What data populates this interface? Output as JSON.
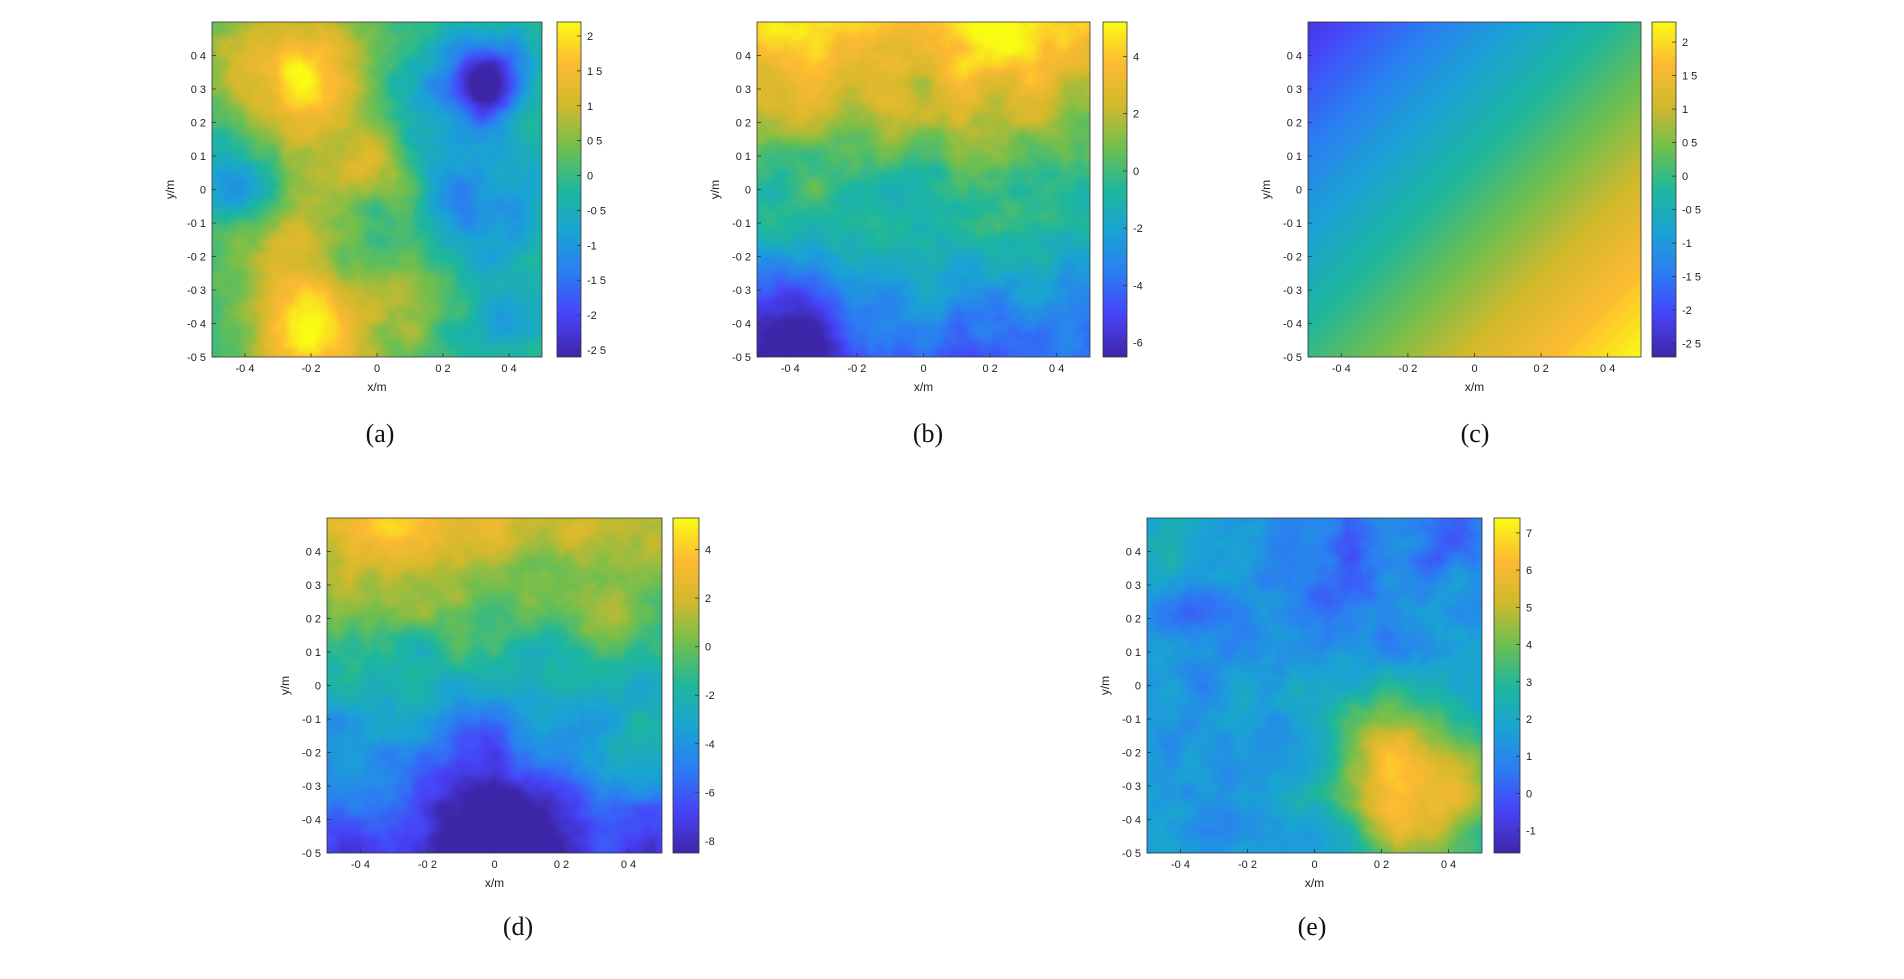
{
  "figure": {
    "colormap": [
      "#3e26a8",
      "#4743f8",
      "#2c7df3",
      "#1aa4d3",
      "#1eb79c",
      "#6fbf4f",
      "#d2b92c",
      "#fdba32",
      "#f9fb15"
    ]
  },
  "chart_data": [
    {
      "id": "a",
      "caption": "(a)",
      "type": "heatmap",
      "xlabel": "x/m",
      "ylabel": "y/m",
      "xlim": [
        -0.5,
        0.5
      ],
      "ylim": [
        -0.5,
        0.5
      ],
      "xticks": [
        -0.4,
        -0.2,
        0,
        0.2,
        0.4
      ],
      "xtick_labels": [
        "-0 4",
        "-0 2",
        "0",
        "0 2",
        "0 4"
      ],
      "yticks": [
        0.4,
        0.3,
        0.2,
        0.1,
        0,
        -0.1,
        -0.2,
        -0.3,
        -0.4,
        -0.5
      ],
      "ytick_labels": [
        "0 4",
        "0 3",
        "0 2",
        "0 1",
        "0",
        "-0 1",
        "-0 2",
        "-0 3",
        "-0 4",
        "-0 5"
      ],
      "clim": [
        -2.6,
        2.2
      ],
      "cticks": [
        2,
        1.5,
        1,
        0.5,
        0,
        -0.5,
        -1,
        -1.5,
        -2,
        -2.5
      ],
      "ctick_labels": [
        "2",
        "1 5",
        "1",
        "0 5",
        "0",
        "-0 5",
        "-1",
        "-1 5",
        "-2",
        "-2 5"
      ],
      "field": {
        "kind": "blobs",
        "base": 0.0,
        "blobs": [
          [
            -0.25,
            0.35,
            0.14,
            2.0
          ],
          [
            0.33,
            0.32,
            0.09,
            -2.7
          ],
          [
            -0.2,
            -0.4,
            0.13,
            2.1
          ],
          [
            -0.05,
            0.05,
            0.1,
            1.2
          ],
          [
            -0.3,
            -0.15,
            0.09,
            0.8
          ],
          [
            0.3,
            -0.05,
            0.14,
            -1.3
          ],
          [
            -0.42,
            0.0,
            0.08,
            -0.9
          ],
          [
            0.1,
            -0.28,
            0.11,
            0.4
          ],
          [
            0.42,
            -0.38,
            0.07,
            -1.0
          ],
          [
            -0.05,
            -0.05,
            0.06,
            -0.4
          ],
          [
            0.15,
            0.25,
            0.08,
            -0.6
          ]
        ]
      }
    },
    {
      "id": "b",
      "caption": "(b)",
      "type": "heatmap",
      "xlabel": "x/m",
      "ylabel": "y/m",
      "xlim": [
        -0.5,
        0.5
      ],
      "ylim": [
        -0.5,
        0.5
      ],
      "xticks": [
        -0.4,
        -0.2,
        0,
        0.2,
        0.4
      ],
      "xtick_labels": [
        "-0 4",
        "-0 2",
        "0",
        "0 2",
        "0 4"
      ],
      "yticks": [
        0.4,
        0.3,
        0.2,
        0.1,
        0,
        -0.1,
        -0.2,
        -0.3,
        -0.4,
        -0.5
      ],
      "ytick_labels": [
        "0 4",
        "0 3",
        "0 2",
        "0 1",
        "0",
        "-0 1",
        "-0 2",
        "-0 3",
        "-0 4",
        "-0 5"
      ],
      "clim": [
        -6.5,
        5.2
      ],
      "cticks": [
        4,
        2,
        0,
        -2,
        -4,
        -6
      ],
      "ctick_labels": [
        "4",
        "2",
        "0",
        "-2",
        "-4",
        "-6"
      ],
      "field": {
        "kind": "gradient",
        "a": 0.0,
        "b": 8.5,
        "c": -0.2,
        "blobs": [
          [
            -0.42,
            -0.42,
            0.12,
            -3.2
          ],
          [
            0.2,
            0.45,
            0.12,
            1.5
          ],
          [
            -0.3,
            0.4,
            0.14,
            0.8
          ],
          [
            0.15,
            -0.3,
            0.1,
            0.8
          ],
          [
            -0.1,
            0.1,
            0.1,
            -0.6
          ],
          [
            0.35,
            -0.1,
            0.09,
            0.5
          ]
        ]
      }
    },
    {
      "id": "c",
      "caption": "(c)",
      "type": "heatmap",
      "xlabel": "x/m",
      "ylabel": "y/m",
      "xlim": [
        -0.5,
        0.5
      ],
      "ylim": [
        -0.5,
        0.5
      ],
      "xticks": [
        -0.4,
        -0.2,
        0,
        0.2,
        0.4
      ],
      "xtick_labels": [
        "-0 4",
        "-0 2",
        "0",
        "0 2",
        "0 4"
      ],
      "yticks": [
        0.4,
        0.3,
        0.2,
        0.1,
        0,
        -0.1,
        -0.2,
        -0.3,
        -0.4,
        -0.5
      ],
      "ytick_labels": [
        "0 4",
        "0 3",
        "0 2",
        "0 1",
        "0",
        "-0 1",
        "-0 2",
        "-0 3",
        "-0 4",
        "-0 5"
      ],
      "clim": [
        -2.7,
        2.3
      ],
      "cticks": [
        2,
        1.5,
        1,
        0.5,
        0,
        -0.5,
        -1,
        -1.5,
        -2,
        -2.5
      ],
      "ctick_labels": [
        "2",
        "1 5",
        "1",
        "0 5",
        "0",
        "-0 5",
        "-1",
        "-1 5",
        "-2",
        "-2 5"
      ],
      "field": {
        "kind": "plane",
        "a": 2.3,
        "b": -2.3,
        "c": 0.0,
        "quad": 0.6,
        "blobs": []
      }
    },
    {
      "id": "d",
      "caption": "(d)",
      "type": "heatmap",
      "xlabel": "x/m",
      "ylabel": "y/m",
      "xlim": [
        -0.5,
        0.5
      ],
      "ylim": [
        -0.5,
        0.5
      ],
      "xticks": [
        -0.4,
        -0.2,
        0,
        0.2,
        0.4
      ],
      "xtick_labels": [
        "-0 4",
        "-0 2",
        "0",
        "0 2",
        "0 4"
      ],
      "yticks": [
        0.4,
        0.3,
        0.2,
        0.1,
        0,
        -0.1,
        -0.2,
        -0.3,
        -0.4,
        -0.5
      ],
      "ytick_labels": [
        "0 4",
        "0 3",
        "0 2",
        "0 1",
        "0",
        "-0 1",
        "-0 2",
        "-0 3",
        "-0 4",
        "-0 5"
      ],
      "clim": [
        -8.5,
        5.3
      ],
      "cticks": [
        4,
        2,
        0,
        -2,
        -4,
        -6,
        -8
      ],
      "ctick_labels": [
        "4",
        "2",
        "0",
        "-2",
        "-4",
        "-6",
        "-8"
      ],
      "field": {
        "kind": "gradient",
        "a": 0.0,
        "b": 9.0,
        "c": -2.5,
        "blobs": [
          [
            0.0,
            -0.42,
            0.14,
            -4.0
          ],
          [
            -0.02,
            -0.15,
            0.06,
            -2.0
          ],
          [
            0.33,
            0.2,
            0.07,
            2.0
          ],
          [
            0.45,
            -0.22,
            0.08,
            2.5
          ],
          [
            -0.25,
            0.45,
            0.12,
            2.0
          ],
          [
            -0.35,
            -0.3,
            0.1,
            1.2
          ]
        ]
      }
    },
    {
      "id": "e",
      "caption": "(e)",
      "type": "heatmap",
      "xlabel": "x/m",
      "ylabel": "y/m",
      "xlim": [
        -0.5,
        0.5
      ],
      "ylim": [
        -0.5,
        0.5
      ],
      "xticks": [
        -0.4,
        -0.2,
        0,
        0.2,
        0.4
      ],
      "xtick_labels": [
        "-0 4",
        "-0 2",
        "0",
        "0 2",
        "0 4"
      ],
      "yticks": [
        0.4,
        0.3,
        0.2,
        0.1,
        0,
        -0.1,
        -0.2,
        -0.3,
        -0.4,
        -0.5
      ],
      "ytick_labels": [
        "0 4",
        "0 3",
        "0 2",
        "0 1",
        "0",
        "-0 1",
        "-0 2",
        "-0 3",
        "-0 4",
        "-0 5"
      ],
      "clim": [
        -1.6,
        7.4
      ],
      "cticks": [
        7,
        6,
        5,
        4,
        3,
        2,
        1,
        0,
        -1
      ],
      "ctick_labels": [
        "7",
        "6",
        "5",
        "4",
        "3",
        "2",
        "1",
        "0",
        "-1"
      ],
      "field": {
        "kind": "blobs",
        "base": 1.6,
        "blobs": [
          [
            0.32,
            -0.35,
            0.16,
            4.5
          ],
          [
            0.2,
            -0.15,
            0.12,
            1.6
          ],
          [
            0.1,
            0.32,
            0.14,
            -1.6
          ],
          [
            0.42,
            0.45,
            0.08,
            -1.5
          ],
          [
            -0.38,
            0.18,
            0.1,
            -0.9
          ],
          [
            -0.25,
            -0.3,
            0.1,
            -0.6
          ],
          [
            0.0,
            0.0,
            0.1,
            0.6
          ],
          [
            -0.45,
            0.45,
            0.08,
            0.9
          ]
        ]
      }
    }
  ]
}
